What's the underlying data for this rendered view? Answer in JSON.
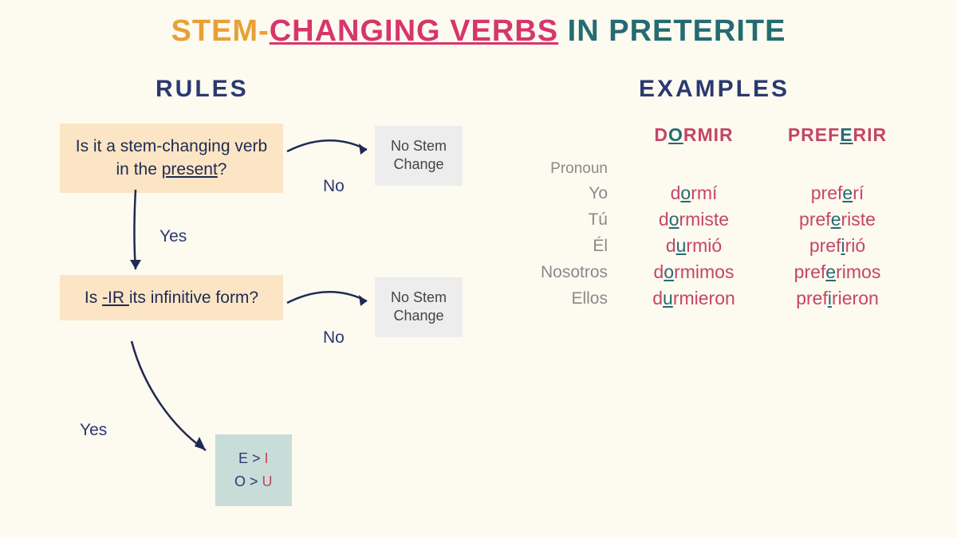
{
  "type": "flowchart",
  "background_color": "#fdfaf0",
  "title": {
    "part1": "STEM-",
    "part2": "CHANGING VERBS",
    "part3": " IN PRETERITE",
    "colors": {
      "part1": "#e8a036",
      "part2": "#d6366b",
      "part3": "#246b72"
    },
    "fontsize": 38
  },
  "sections": {
    "rules_label": "RULES",
    "examples_label": "EXAMPLES",
    "label_color": "#2a3970",
    "label_fontsize": 30
  },
  "flowchart": {
    "box_bg": "#fbe5c4",
    "grey_bg": "#ededed",
    "result_bg": "#c8ddd8",
    "text_color": "#1f2a52",
    "arrow_color": "#1f2a52",
    "question1": {
      "pre": "Is it a stem-changing verb in the ",
      "underline": "present",
      "post": "?"
    },
    "question2": {
      "pre": "Is ",
      "underline": "-IR ",
      "post": "its infinitive form?"
    },
    "no_stem": "No Stem Change",
    "yes_label": "Yes",
    "no_label": "No",
    "result": {
      "line1_from": "E",
      "line1_to": "I",
      "line2_from": "O",
      "line2_to": "U",
      "from_color": "#2a3970",
      "to_color": "#c54565",
      "sep": " > "
    }
  },
  "examples": {
    "pronoun_header": "Pronoun",
    "verb1": {
      "pre": "D",
      "u": "O",
      "post": "RMIR"
    },
    "verb2": {
      "pre": "PREF",
      "u": "E",
      "post": "RIR"
    },
    "pronoun_color": "#8a8a8a",
    "verb_color": "#c54565",
    "underline_color": "#246b72",
    "rows": [
      {
        "pronoun": "Yo",
        "v1": {
          "a": "d",
          "u": "o",
          "b": "rmí"
        },
        "v2": {
          "a": "pref",
          "u": "e",
          "b": "rí"
        }
      },
      {
        "pronoun": "Tú",
        "v1": {
          "a": "d",
          "u": "o",
          "b": "rmiste"
        },
        "v2": {
          "a": "pref",
          "u": "e",
          "b": "riste"
        }
      },
      {
        "pronoun": "Él",
        "v1": {
          "a": "d",
          "u": "u",
          "b": "rmió"
        },
        "v2": {
          "a": "pref",
          "u": "i",
          "b": "rió"
        }
      },
      {
        "pronoun": "Nosotros",
        "v1": {
          "a": "d",
          "u": "o",
          "b": "rmimos"
        },
        "v2": {
          "a": "pref",
          "u": "e",
          "b": "rimos"
        }
      },
      {
        "pronoun": "Ellos",
        "v1": {
          "a": "d",
          "u": "u",
          "b": "rmieron"
        },
        "v2": {
          "a": "pref",
          "u": "i",
          "b": "rieron"
        }
      }
    ]
  }
}
